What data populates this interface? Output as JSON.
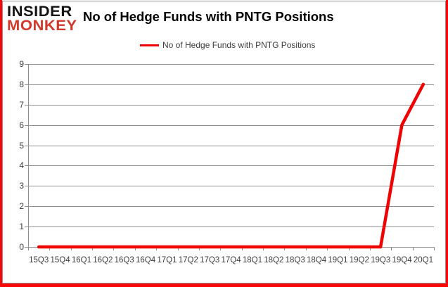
{
  "brand": {
    "line1": "INSIDER",
    "line2": "MONKEY",
    "black": "#141414",
    "red": "#d0392b"
  },
  "header": {
    "title": "No of Hedge Funds with PNTG Positions"
  },
  "legend": {
    "label": "No of Hedge Funds with PNTG Positions",
    "swatch_color": "#ee0202"
  },
  "chart_data": {
    "type": "line",
    "title": "No of Hedge Funds with PNTG Positions",
    "categories": [
      "15Q3",
      "15Q4",
      "16Q1",
      "16Q2",
      "16Q3",
      "16Q4",
      "17Q1",
      "17Q2",
      "17Q3",
      "17Q4",
      "18Q1",
      "18Q2",
      "18Q3",
      "18Q4",
      "19Q1",
      "19Q2",
      "19Q3",
      "19Q4",
      "20Q1"
    ],
    "series": [
      {
        "name": "No of Hedge Funds with PNTG Positions",
        "color": "#ee0202",
        "values": [
          0,
          0,
          0,
          0,
          0,
          0,
          0,
          0,
          0,
          0,
          0,
          0,
          0,
          0,
          0,
          0,
          0,
          6,
          8
        ]
      }
    ],
    "xlabel": "",
    "ylabel": "",
    "ylim": [
      0,
      9
    ],
    "yticks": [
      0,
      1,
      2,
      3,
      4,
      5,
      6,
      7,
      8,
      9
    ],
    "grid": "horizontal",
    "legend_position": "top-center"
  },
  "colors": {
    "grid": "#8e8e8e",
    "axis": "#8e8e8e",
    "axis_text": "#3d3d3d",
    "frame_red": "#f90606",
    "background": "#ffffff"
  }
}
